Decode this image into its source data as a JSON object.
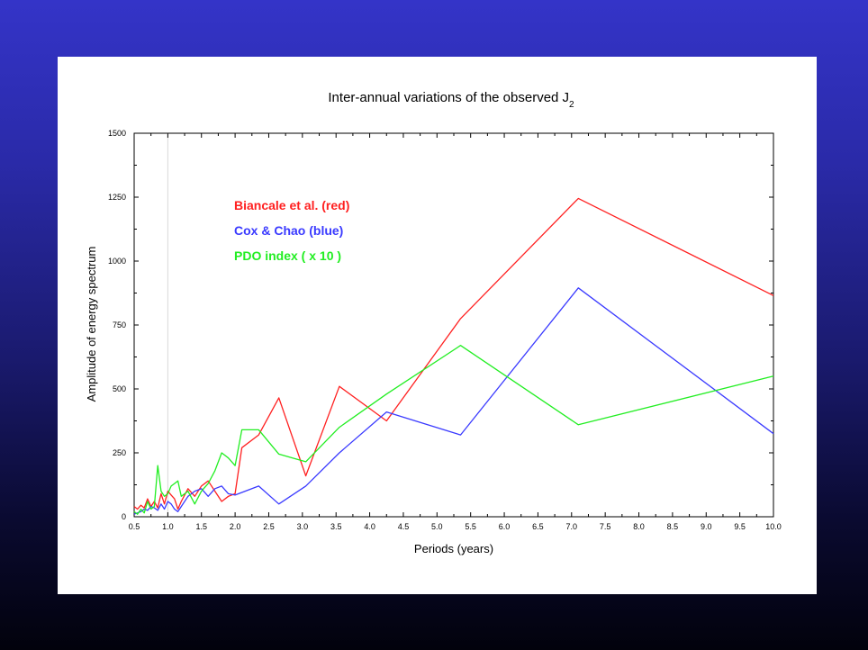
{
  "chart_data": {
    "type": "line",
    "title": "Inter-annual variations of the observed J",
    "title_subscript": "2",
    "xlabel": "Periods (years)",
    "ylabel": "Amplitude of energy spectrum",
    "xlim": [
      0.5,
      10.0
    ],
    "ylim": [
      0,
      1500
    ],
    "xticks": [
      "0.5",
      "1.0",
      "1.5",
      "2.0",
      "2.5",
      "3.0",
      "3.5",
      "4.0",
      "4.5",
      "5.0",
      "5.5",
      "6.0",
      "6.5",
      "7.0",
      "7.5",
      "8.0",
      "8.5",
      "9.0",
      "9.5",
      "10.0"
    ],
    "yticks": [
      "0",
      "250",
      "500",
      "750",
      "1000",
      "1250",
      "1500"
    ],
    "reference_line_x": 1.0,
    "legend_position": "top-left",
    "series": [
      {
        "name": "Biancale et al. (red)",
        "color": "#ff2020",
        "x": [
          0.5,
          0.55,
          0.6,
          0.65,
          0.7,
          0.75,
          0.8,
          0.85,
          0.9,
          0.95,
          1.0,
          1.05,
          1.1,
          1.15,
          1.2,
          1.3,
          1.4,
          1.5,
          1.6,
          1.7,
          1.8,
          1.9,
          2.0,
          2.1,
          2.35,
          2.65,
          3.05,
          3.55,
          4.25,
          5.35,
          7.1,
          10.0
        ],
        "y": [
          40,
          30,
          45,
          35,
          70,
          40,
          60,
          35,
          90,
          50,
          100,
          85,
          70,
          30,
          60,
          110,
          80,
          120,
          140,
          100,
          60,
          80,
          90,
          270,
          320,
          465,
          160,
          510,
          375,
          775,
          1245,
          865
        ]
      },
      {
        "name": "Cox & Chao (blue)",
        "color": "#3a3aff",
        "x": [
          0.5,
          0.55,
          0.6,
          0.65,
          0.7,
          0.75,
          0.8,
          0.85,
          0.9,
          0.95,
          1.0,
          1.05,
          1.1,
          1.15,
          1.2,
          1.3,
          1.4,
          1.5,
          1.6,
          1.7,
          1.8,
          1.9,
          2.0,
          2.1,
          2.35,
          2.65,
          3.05,
          3.55,
          4.25,
          5.35,
          7.1,
          10.0
        ],
        "y": [
          10,
          15,
          20,
          30,
          25,
          40,
          35,
          25,
          50,
          30,
          60,
          50,
          30,
          20,
          40,
          80,
          100,
          110,
          80,
          110,
          120,
          90,
          85,
          95,
          120,
          50,
          120,
          250,
          410,
          320,
          895,
          325
        ]
      },
      {
        "name": "PDO index ( x 10 )",
        "color": "#22ee22",
        "x": [
          0.5,
          0.55,
          0.6,
          0.65,
          0.7,
          0.75,
          0.8,
          0.85,
          0.9,
          0.95,
          1.0,
          1.05,
          1.1,
          1.15,
          1.2,
          1.3,
          1.4,
          1.5,
          1.6,
          1.7,
          1.8,
          1.9,
          2.0,
          2.1,
          2.35,
          2.65,
          3.05,
          3.55,
          4.25,
          5.35,
          7.1,
          10.0
        ],
        "y": [
          20,
          10,
          30,
          15,
          60,
          30,
          40,
          200,
          100,
          80,
          90,
          120,
          130,
          140,
          80,
          100,
          50,
          100,
          130,
          180,
          250,
          230,
          200,
          340,
          340,
          245,
          215,
          350,
          480,
          670,
          360,
          550
        ]
      }
    ]
  }
}
